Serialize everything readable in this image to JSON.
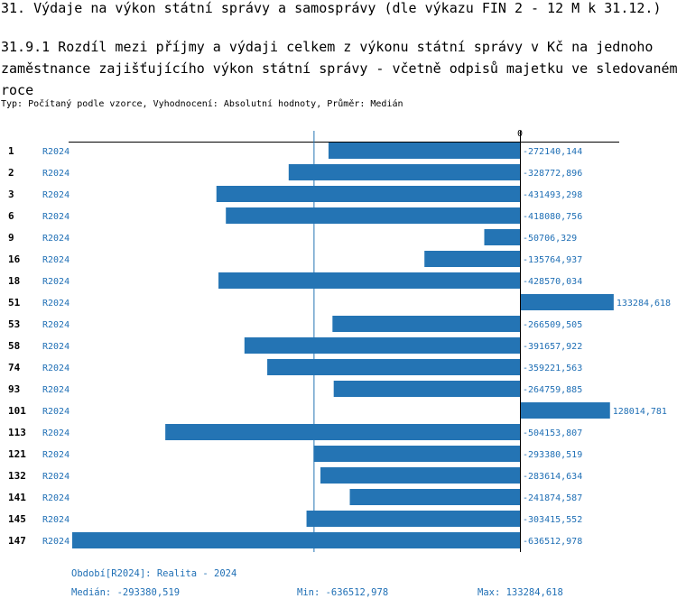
{
  "header": {
    "title": "31. Výdaje na výkon státní správy a samosprávy (dle výkazu FIN 2 - 12 M k 31.12.)",
    "subtitle": "31.9.1 Rozdíl mezi příjmy a výdaji celkem z výkonu státní správy v Kč na jednoho zaměstnance zajišťujícího výkon státní správy - včetně odpisů majetku ve sledovaném roce",
    "meta": "Typ: Počítaný podle vzorce, Vyhodnocení: Absolutní hodnoty, Průměr: Medián"
  },
  "chart_data": {
    "type": "bar",
    "orientation": "horizontal",
    "zero_label": "0",
    "categories": [
      "1",
      "2",
      "3",
      "6",
      "9",
      "16",
      "18",
      "51",
      "53",
      "58",
      "74",
      "93",
      "101",
      "113",
      "121",
      "132",
      "141",
      "145",
      "147"
    ],
    "series_label": "R2024",
    "values": [
      -272140.144,
      -328772.896,
      -431493.298,
      -418080.756,
      -50706.329,
      -135764.937,
      -428570.034,
      133284.618,
      -266509.505,
      -391657.922,
      -359221.563,
      -264759.885,
      128014.781,
      -504153.807,
      -293380.519,
      -283614.634,
      -241874.587,
      -303415.552,
      -636512.978
    ],
    "value_labels": [
      "-272140,144",
      "-328772,896",
      "-431493,298",
      "-418080,756",
      "-50706,329",
      "-135764,937",
      "-428570,034",
      "133284,618",
      "-266509,505",
      "-391657,922",
      "-359221,563",
      "-264759,885",
      "128014,781",
      "-504153,807",
      "-293380,519",
      "-283614,634",
      "-241874,587",
      "-303415,552",
      "-636512,978"
    ],
    "median": -293380.519,
    "min": -636512.978,
    "max": 133284.618,
    "bar_color": "#2474b4",
    "text_color": "#1f6fb5"
  },
  "footer": {
    "period": "Období[R2024]: Realita - 2024",
    "median": "Medián: -293380,519",
    "min": "Min: -636512,978",
    "max": "Max: 133284,618"
  }
}
